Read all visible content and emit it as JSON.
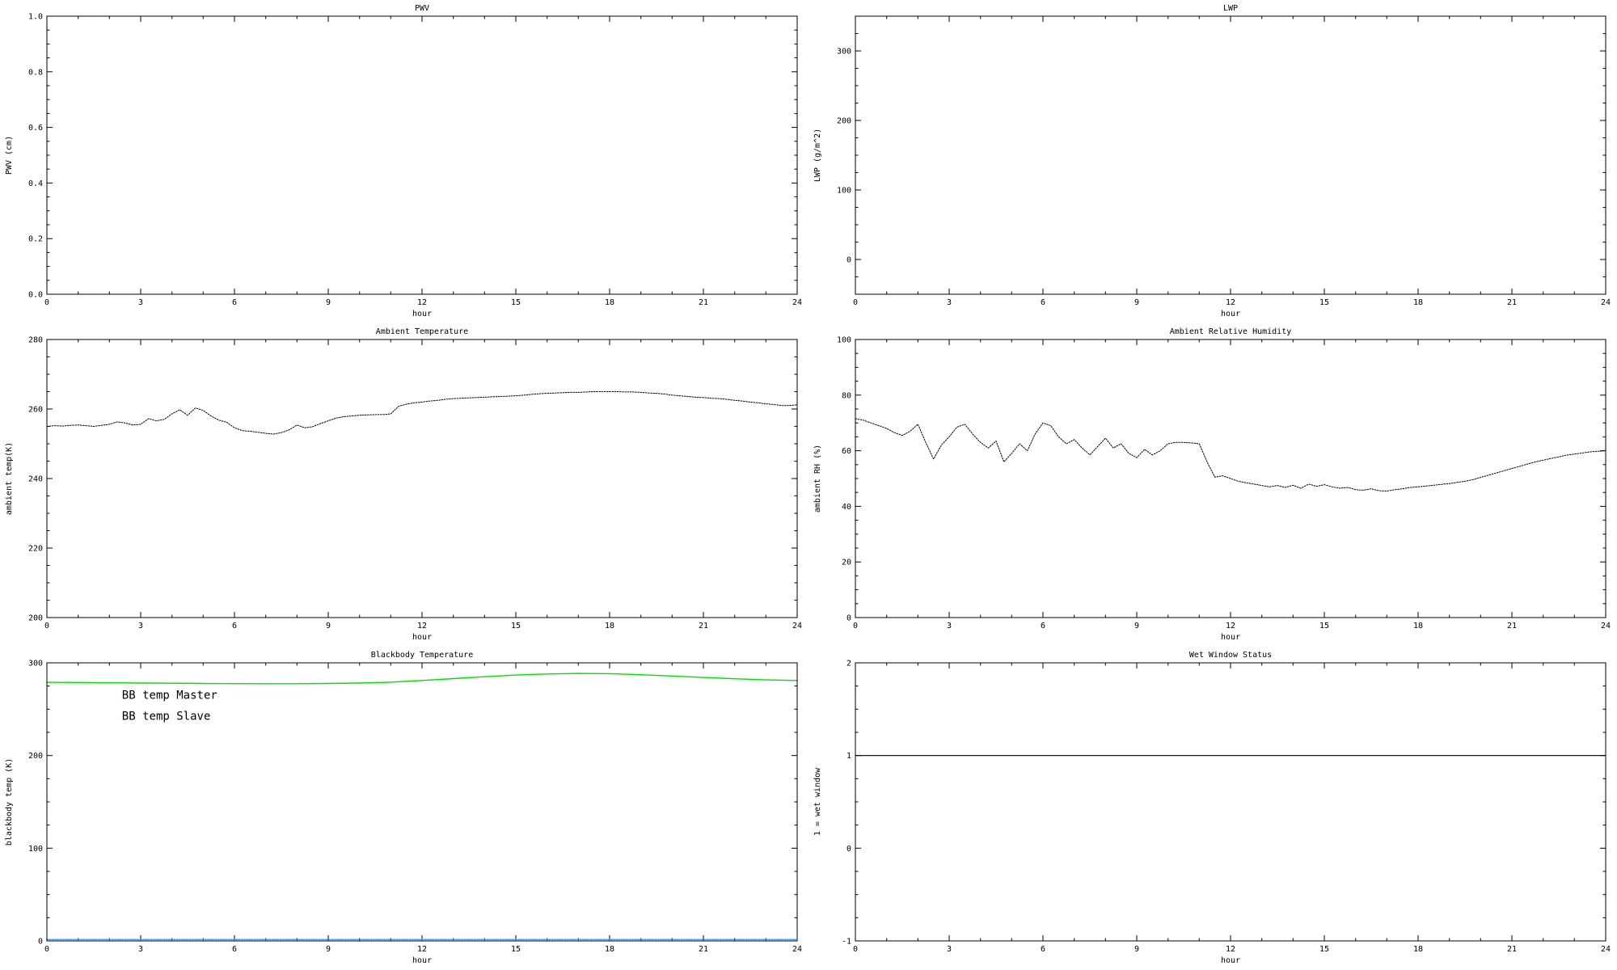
{
  "page": {
    "background": "#ffffff"
  },
  "colors": {
    "axis": "#000000",
    "bb_master_blue": "#3d97ff",
    "bb_slave_green": "#00e000",
    "line_black": "#000000"
  },
  "chart_data": [
    {
      "id": "pwv",
      "type": "line",
      "title": "PWV",
      "xlabel": "hour",
      "ylabel": "PWV (cm)",
      "xlim": [
        0,
        24
      ],
      "ylim": [
        0,
        1
      ],
      "xticks": [
        0,
        3,
        6,
        9,
        12,
        15,
        18,
        21,
        24
      ],
      "xtick_labels": [
        "0",
        "3",
        "6",
        "9",
        "12",
        "15",
        "18",
        "21",
        "24"
      ],
      "yticks": [
        0,
        0.2,
        0.4,
        0.6,
        0.8,
        1.0
      ],
      "ytick_labels": [
        "0.0",
        "0.2",
        "0.4",
        "0.6",
        "0.8",
        "1.0"
      ],
      "xminor": 1,
      "yminor": 0.05,
      "grid": false,
      "series": []
    },
    {
      "id": "lwp",
      "type": "line",
      "title": "LWP",
      "xlabel": "hour",
      "ylabel": "LWP (g/m^2)",
      "xlim": [
        0,
        24
      ],
      "ylim": [
        -50,
        350
      ],
      "xticks": [
        0,
        3,
        6,
        9,
        12,
        15,
        18,
        21,
        24
      ],
      "xtick_labels": [
        "0",
        "3",
        "6",
        "9",
        "12",
        "15",
        "18",
        "21",
        "24"
      ],
      "yticks": [
        0,
        100,
        200,
        300
      ],
      "ytick_labels": [
        "0",
        "100",
        "200",
        "300"
      ],
      "xminor": 1,
      "yminor": 25,
      "grid": false,
      "series": []
    },
    {
      "id": "ambient-temperature",
      "type": "line",
      "title": "Ambient Temperature",
      "xlabel": "hour",
      "ylabel": "ambient temp(K)",
      "xlim": [
        0,
        24
      ],
      "ylim": [
        200,
        280
      ],
      "xticks": [
        0,
        3,
        6,
        9,
        12,
        15,
        18,
        21,
        24
      ],
      "xtick_labels": [
        "0",
        "3",
        "6",
        "9",
        "12",
        "15",
        "18",
        "21",
        "24"
      ],
      "yticks": [
        200,
        220,
        240,
        260,
        280
      ],
      "ytick_labels": [
        "200",
        "220",
        "240",
        "260",
        "280"
      ],
      "xminor": 1,
      "yminor": 5,
      "grid": false,
      "series": [
        {
          "name": "ambient temp",
          "color": "#000000",
          "style": "dotted",
          "width": 1,
          "x0": 0,
          "dx": 0.25,
          "values": [
            255.0,
            255.2,
            255.1,
            255.3,
            255.4,
            255.2,
            255.0,
            255.3,
            255.6,
            256.3,
            256.0,
            255.4,
            255.6,
            257.2,
            256.6,
            257.0,
            258.6,
            259.8,
            258.2,
            260.3,
            259.6,
            258.0,
            256.8,
            256.2,
            254.6,
            253.8,
            253.6,
            253.3,
            253.0,
            252.8,
            253.2,
            254.0,
            255.4,
            254.6,
            254.9,
            255.8,
            256.6,
            257.4,
            257.8,
            258.0,
            258.2,
            258.3,
            258.4,
            258.4,
            258.6,
            260.8,
            261.4,
            261.8,
            262.0,
            262.3,
            262.5,
            262.8,
            263.0,
            263.1,
            263.2,
            263.3,
            263.4,
            263.5,
            263.6,
            263.7,
            263.8,
            264.0,
            264.2,
            264.4,
            264.5,
            264.6,
            264.7,
            264.8,
            264.8,
            264.9,
            265.0,
            265.0,
            265.0,
            265.0,
            264.9,
            264.9,
            264.8,
            264.6,
            264.5,
            264.3,
            264.0,
            263.8,
            263.6,
            263.4,
            263.3,
            263.1,
            263.0,
            262.8,
            262.5,
            262.3,
            262.0,
            261.8,
            261.5,
            261.3,
            261.0,
            261.0,
            261.2
          ]
        }
      ]
    },
    {
      "id": "ambient-relative-humidity",
      "type": "line",
      "title": "Ambient Relative Humidity",
      "xlabel": "hour",
      "ylabel": "ambient RH (%)",
      "xlim": [
        0,
        24
      ],
      "ylim": [
        0,
        100
      ],
      "xticks": [
        0,
        3,
        6,
        9,
        12,
        15,
        18,
        21,
        24
      ],
      "xtick_labels": [
        "0",
        "3",
        "6",
        "9",
        "12",
        "15",
        "18",
        "21",
        "24"
      ],
      "yticks": [
        0,
        20,
        40,
        60,
        80,
        100
      ],
      "ytick_labels": [
        "0",
        "20",
        "40",
        "60",
        "80",
        "100"
      ],
      "xminor": 1,
      "yminor": 5,
      "grid": false,
      "series": [
        {
          "name": "ambient RH",
          "color": "#000000",
          "style": "dotted",
          "width": 1,
          "x0": 0,
          "dx": 0.25,
          "values": [
            71.5,
            71.0,
            70.0,
            69.0,
            68.0,
            66.5,
            65.5,
            67.0,
            69.5,
            63.0,
            57.0,
            62.0,
            65.0,
            68.5,
            69.5,
            66.0,
            63.0,
            61.0,
            63.5,
            56.0,
            59.0,
            62.5,
            60.0,
            66.0,
            70.0,
            69.0,
            65.0,
            62.5,
            64.0,
            61.0,
            58.5,
            61.5,
            64.5,
            61.0,
            62.5,
            59.0,
            57.5,
            60.5,
            58.5,
            60.0,
            62.5,
            63.0,
            63.0,
            62.8,
            62.5,
            56.0,
            50.5,
            51.0,
            50.0,
            49.0,
            48.5,
            48.0,
            47.5,
            47.0,
            47.5,
            46.8,
            47.6,
            46.5,
            48.0,
            47.2,
            47.8,
            47.0,
            46.5,
            46.8,
            46.0,
            45.8,
            46.3,
            45.6,
            45.5,
            46.0,
            46.3,
            46.8,
            47.0,
            47.3,
            47.6,
            47.9,
            48.2,
            48.6,
            49.0,
            49.6,
            50.4,
            51.2,
            52.0,
            52.8,
            53.6,
            54.4,
            55.2,
            56.0,
            56.6,
            57.2,
            57.8,
            58.4,
            58.8,
            59.2,
            59.6,
            59.8,
            60.0
          ]
        }
      ]
    },
    {
      "id": "blackbody-temperature",
      "type": "line",
      "title": "Blackbody Temperature",
      "xlabel": "hour",
      "ylabel": "blackbody temp (K)",
      "xlim": [
        0,
        24
      ],
      "ylim": [
        0,
        300
      ],
      "xticks": [
        0,
        3,
        6,
        9,
        12,
        15,
        18,
        21,
        24
      ],
      "xtick_labels": [
        "0",
        "3",
        "6",
        "9",
        "12",
        "15",
        "18",
        "21",
        "24"
      ],
      "yticks": [
        0,
        100,
        200,
        300
      ],
      "ytick_labels": [
        "0",
        "100",
        "200",
        "300"
      ],
      "xminor": 1,
      "yminor": 25,
      "grid": false,
      "legend": [
        {
          "label": "BB temp Master",
          "color": "#3d97ff",
          "fx": 0.1,
          "fy": 0.13
        },
        {
          "label": "BB temp Slave",
          "color": "#00e000",
          "fx": 0.1,
          "fy": 0.205
        }
      ],
      "series": [
        {
          "name": "BB temp Slave",
          "color": "#00e000",
          "style": "solid",
          "width": 1.4,
          "x0": 0,
          "dx": 1,
          "values": [
            279.0,
            278.8,
            278.5,
            278.2,
            278.0,
            277.8,
            277.6,
            277.5,
            277.5,
            277.8,
            278.2,
            279.2,
            281.0,
            283.0,
            285.0,
            286.8,
            288.0,
            288.6,
            288.3,
            287.2,
            285.8,
            284.2,
            282.8,
            281.6,
            281.0
          ]
        },
        {
          "name": "BB temp Master",
          "color": "#3d97ff",
          "style": "dotted",
          "width": 1.6,
          "x0": 0,
          "dx": 1,
          "values": [
            1.5,
            1.5,
            1.5,
            1.5,
            1.5,
            1.5,
            1.5,
            1.5,
            1.5,
            1.5,
            1.5,
            1.5,
            1.5,
            1.5,
            1.5,
            1.5,
            1.5,
            1.5,
            1.5,
            1.5,
            1.5,
            1.5,
            1.5,
            1.5,
            1.5
          ]
        }
      ]
    },
    {
      "id": "wet-window-status",
      "type": "line",
      "title": "Wet Window Status",
      "xlabel": "hour",
      "ylabel": "1 = wet window",
      "xlim": [
        0,
        24
      ],
      "ylim": [
        -1,
        2
      ],
      "xticks": [
        0,
        3,
        6,
        9,
        12,
        15,
        18,
        21,
        24
      ],
      "xtick_labels": [
        "0",
        "3",
        "6",
        "9",
        "12",
        "15",
        "18",
        "21",
        "24"
      ],
      "yticks": [
        -1,
        0,
        1,
        2
      ],
      "ytick_labels": [
        "-1",
        "0",
        "1",
        "2"
      ],
      "xminor": 1,
      "yminor": 0.25,
      "grid": false,
      "series": [
        {
          "name": "wet window flag",
          "color": "#000000",
          "style": "solid",
          "width": 1.2,
          "x0": 0,
          "dx": 24,
          "values": [
            1,
            1
          ]
        }
      ]
    }
  ]
}
